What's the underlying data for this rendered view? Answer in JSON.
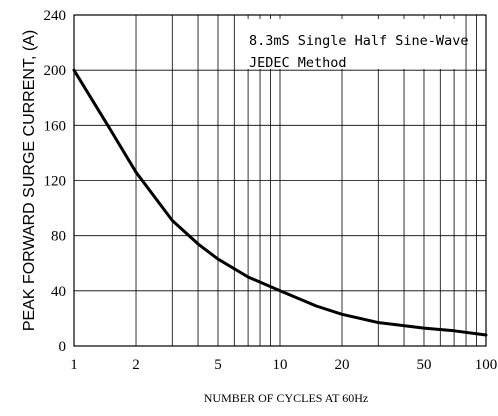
{
  "chart_data": {
    "type": "line",
    "xlabel": "NUMBER OF CYCLES AT 60Hz",
    "ylabel": "PEAK  FORWARD SURGE CURRENT, (A)",
    "x_scale": "log",
    "xlim": [
      1,
      100
    ],
    "ylim": [
      0,
      240
    ],
    "x_ticks": [
      1,
      2,
      5,
      10,
      20,
      50,
      100
    ],
    "y_ticks": [
      0,
      40,
      80,
      120,
      160,
      200,
      240
    ],
    "grid": true,
    "annotations": [
      "8.3mS Single Half Sine-Wave",
      "JEDEC Method"
    ],
    "series": [
      {
        "x": [
          1,
          1.5,
          2,
          3,
          4,
          5,
          7,
          10,
          15,
          20,
          30,
          50,
          70,
          100
        ],
        "y": [
          200,
          157,
          126,
          91,
          74,
          63,
          50,
          40,
          29,
          23,
          17,
          13,
          11,
          8
        ],
        "color": "#000000"
      }
    ]
  }
}
